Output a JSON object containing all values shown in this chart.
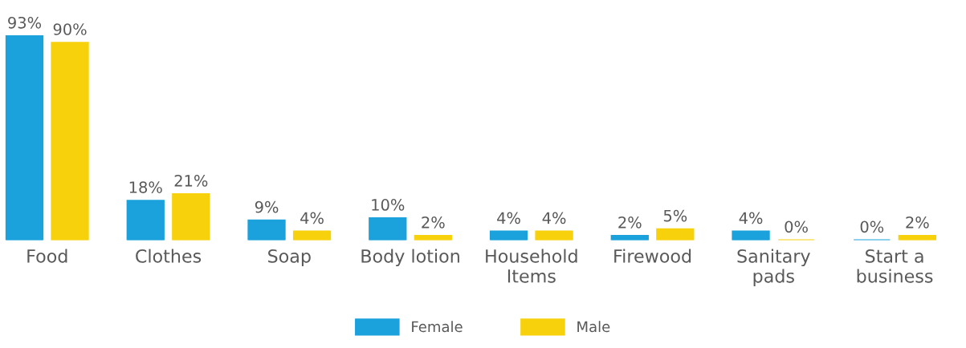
{
  "chart_data": {
    "type": "bar",
    "categories": [
      "Food",
      "Clothes",
      "Soap",
      "Body lotion",
      "Household\nItems",
      "Firewood",
      "Sanitary\npads",
      "Start a\nbusiness"
    ],
    "series": [
      {
        "name": "Female",
        "color": "#1ba1dc",
        "values": [
          93,
          18,
          9,
          10,
          4,
          2,
          4,
          0
        ],
        "value_labels": [
          "93%",
          "18%",
          "9%",
          "10%",
          "4%",
          "2%",
          "4%",
          "0%"
        ]
      },
      {
        "name": "Male",
        "color": "#f7d20c",
        "values": [
          90,
          21,
          4,
          2,
          4,
          5,
          0,
          2
        ],
        "value_labels": [
          "90%",
          "21%",
          "4%",
          "2%",
          "4%",
          "5%",
          "0%",
          "2%"
        ]
      }
    ],
    "legend": "bottom",
    "grid": false
  }
}
